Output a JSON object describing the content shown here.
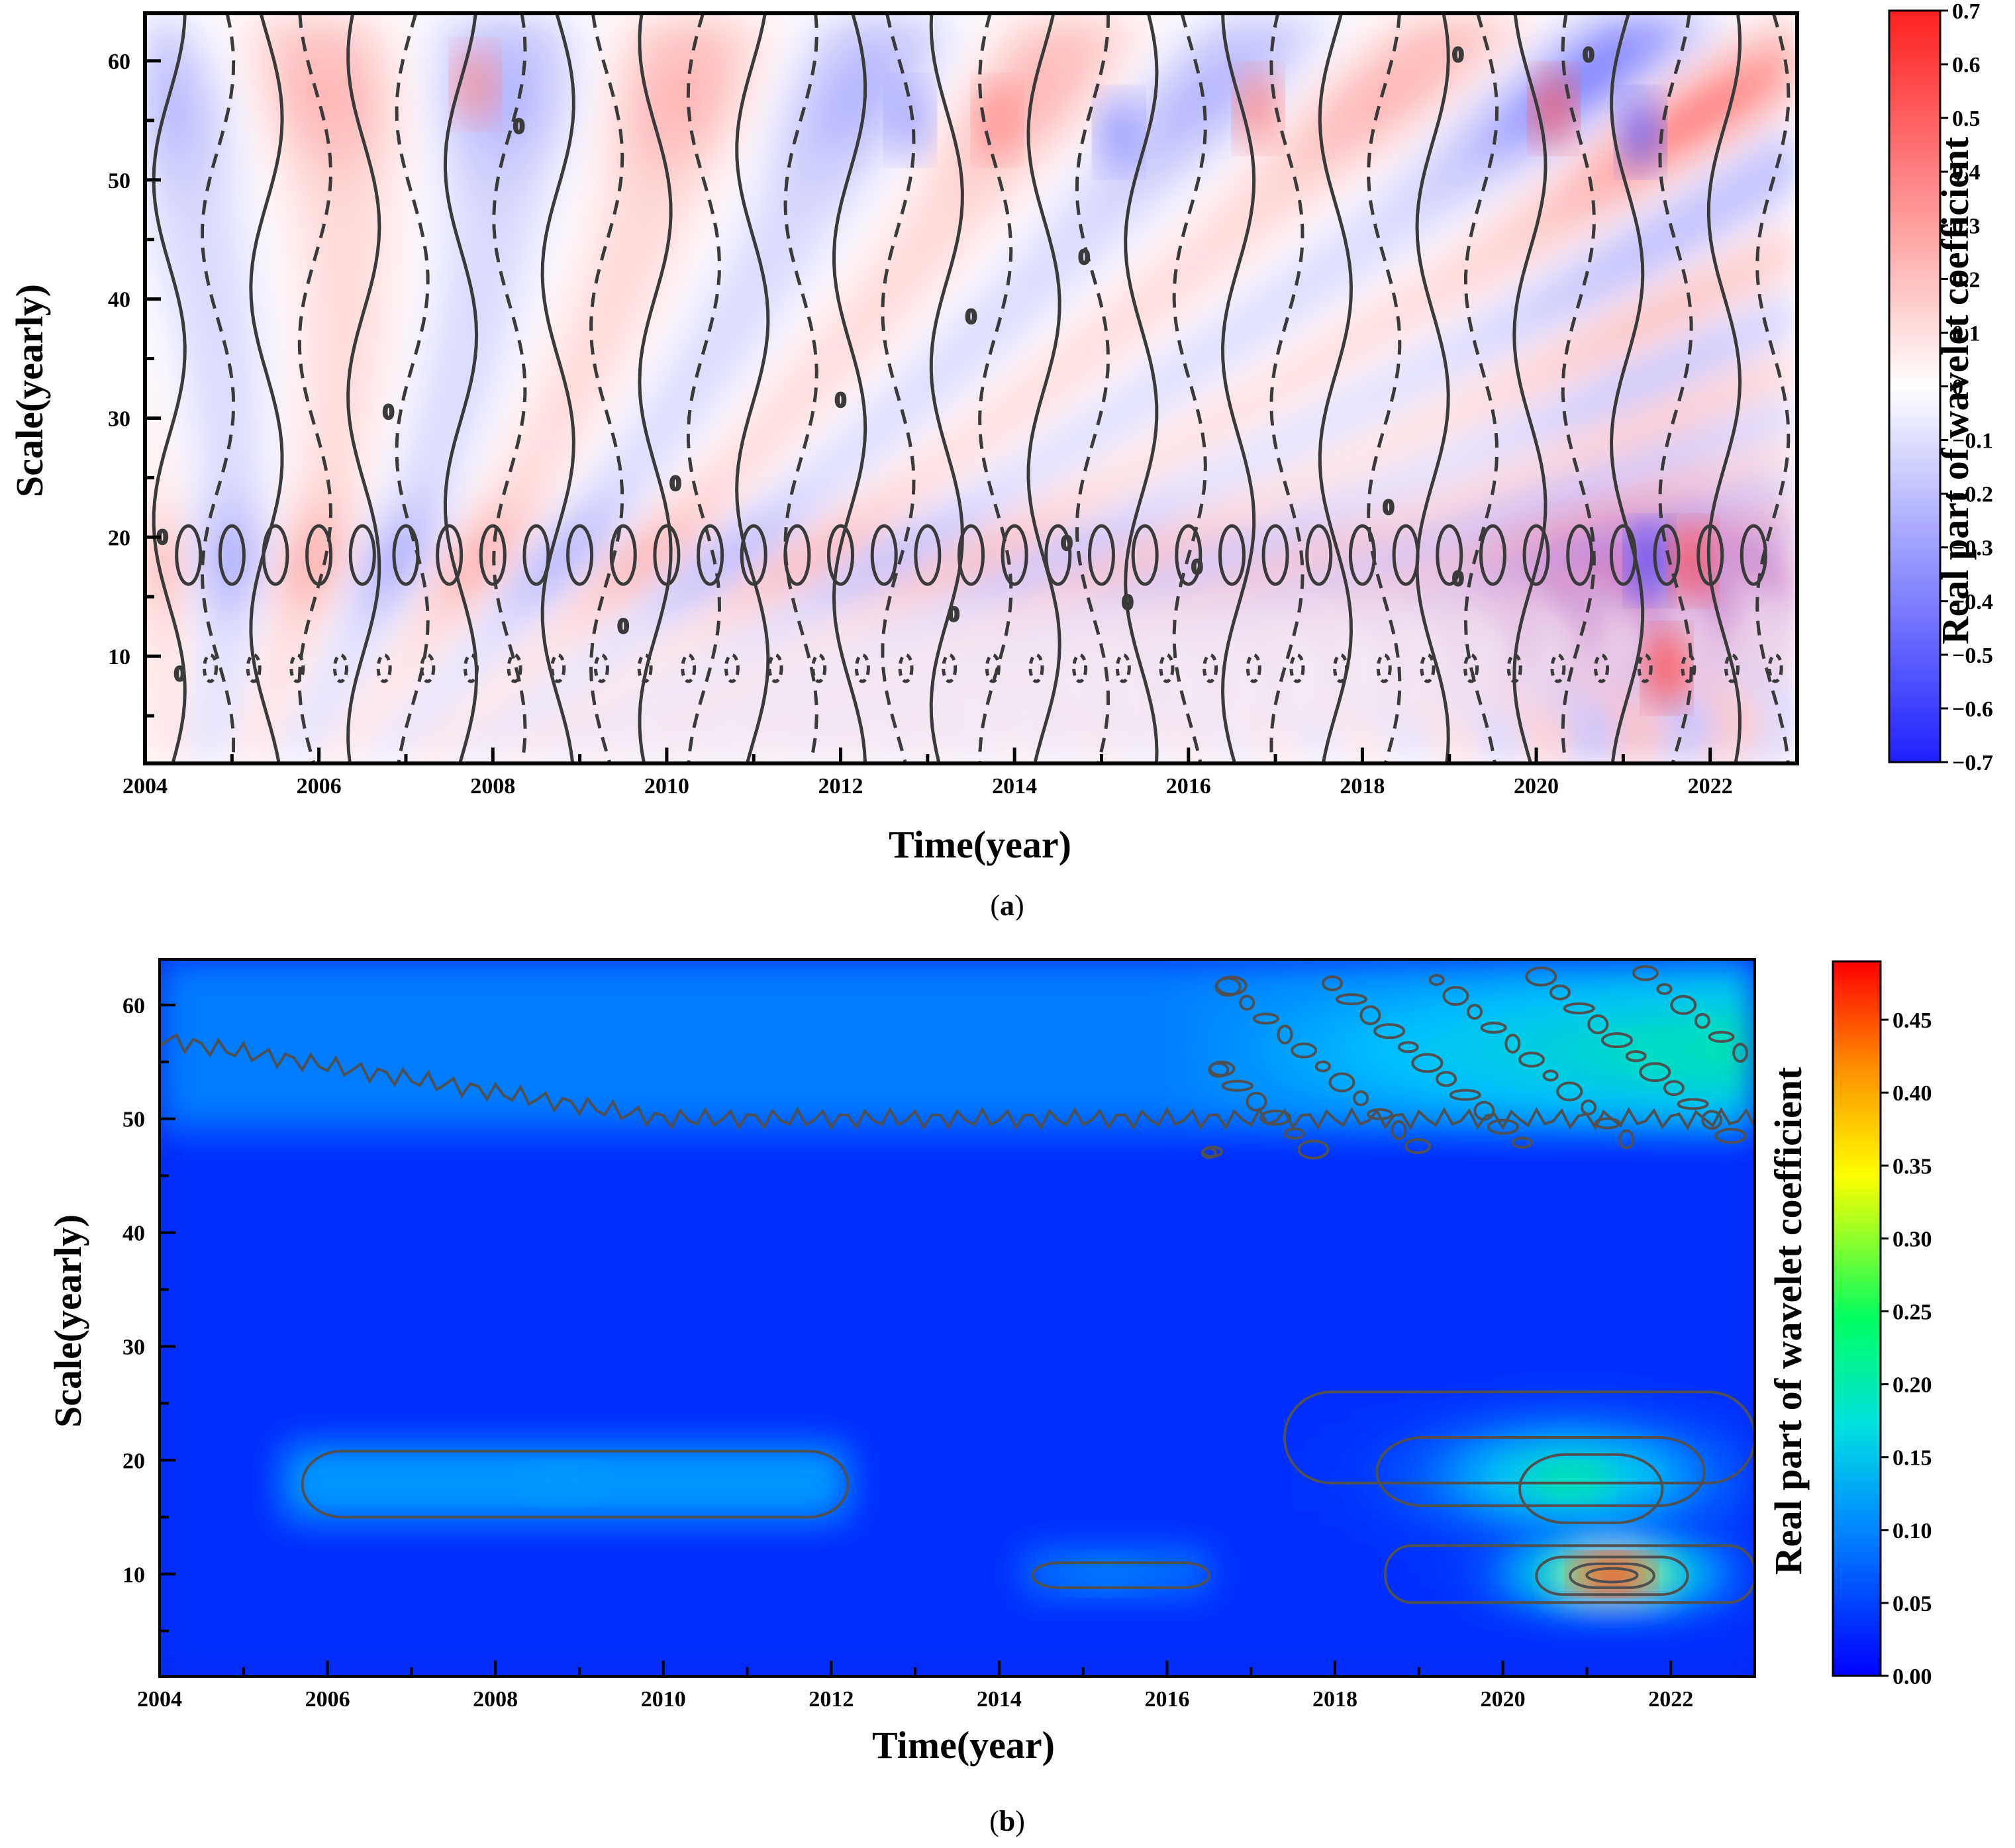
{
  "chart_data": [
    {
      "type": "heatmap",
      "panel": "a",
      "caption_letter": "a",
      "caption_open": "(",
      "caption_close": ")",
      "xlabel": "Time(year)",
      "ylabel": "Scale(yearly)",
      "colorbar_label": "Real part of wavelet coefficient",
      "xlim": [
        2004,
        2023
      ],
      "ylim": [
        1,
        64
      ],
      "x_ticks": [
        "2004",
        "2006",
        "2008",
        "2010",
        "2012",
        "2014",
        "2016",
        "2018",
        "2020",
        "2022"
      ],
      "y_ticks": [
        "10",
        "20",
        "30",
        "40",
        "50",
        "60"
      ],
      "colorbar_range": [
        -0.7,
        0.7
      ],
      "colorbar_ticks": [
        "0.7",
        "0.6",
        "0.5",
        "0.4",
        "0.3",
        "0.2",
        "0.1",
        "0",
        "−0.1",
        "−0.2",
        "−0.3",
        "−0.4",
        "−0.5",
        "−0.6",
        "−0.7"
      ],
      "colormap": [
        "#1f1fff",
        "#ffffff",
        "#ff1f1f"
      ],
      "contour_zero_label": "0",
      "contour_style": "solid positive/negative, dashed near zero",
      "features": [
        {
          "x": 2021.3,
          "y": 18,
          "value": -0.55
        },
        {
          "x": 2021.8,
          "y": 18,
          "value": 0.5
        },
        {
          "x": 2021.5,
          "y": 9,
          "value": 0.6
        },
        {
          "x": 2020.2,
          "y": 56,
          "value": 0.5
        },
        {
          "x": 2021.2,
          "y": 54,
          "value": -0.5
        },
        {
          "x": 2013.8,
          "y": 55,
          "value": 0.35
        },
        {
          "x": 2007.8,
          "y": 58,
          "value": 0.35
        },
        {
          "x": 2012.8,
          "y": 55,
          "value": -0.3
        },
        {
          "x": 2015.2,
          "y": 54,
          "value": -0.35
        },
        {
          "x": 2016.8,
          "y": 56,
          "value": 0.4
        }
      ]
    },
    {
      "type": "heatmap",
      "panel": "b",
      "caption_letter": "b",
      "caption_open": "(",
      "caption_close": ")",
      "xlabel": "Time(year)",
      "ylabel": "Scale(yearly)",
      "colorbar_label": "Real part of wavelet coefficient",
      "xlim": [
        2004,
        2023
      ],
      "ylim": [
        1,
        64
      ],
      "x_ticks": [
        "2004",
        "2006",
        "2008",
        "2010",
        "2012",
        "2014",
        "2016",
        "2018",
        "2020",
        "2022"
      ],
      "y_ticks": [
        "10",
        "20",
        "30",
        "40",
        "50",
        "60"
      ],
      "colorbar_range": [
        0.0,
        0.49
      ],
      "colorbar_ticks": [
        "0.45",
        "0.40",
        "0.35",
        "0.30",
        "0.25",
        "0.20",
        "0.15",
        "0.10",
        "0.05",
        "0.00"
      ],
      "colormap": [
        "#0000ff",
        "#00bfff",
        "#00ff80",
        "#ffff00",
        "#ff0000"
      ],
      "features": [
        {
          "x": 2021.3,
          "y": 10,
          "value": 0.47
        },
        {
          "x": 2020.8,
          "y": 18,
          "value": 0.2
        },
        {
          "x": 2021.8,
          "y": 56,
          "value": 0.18
        },
        {
          "x": 2008.8,
          "y": 18,
          "value": 0.1
        },
        {
          "x": 2015.3,
          "y": 10,
          "value": 0.08
        }
      ]
    }
  ]
}
